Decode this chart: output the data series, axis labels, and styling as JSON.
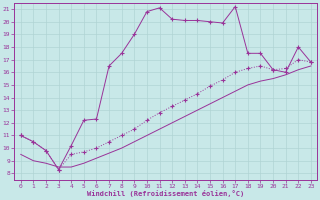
{
  "xlabel": "Windchill (Refroidissement éolien,°C)",
  "bg_color": "#c8e8e8",
  "line_color": "#993399",
  "grid_color": "#b0d4d4",
  "xlim": [
    -0.5,
    23.5
  ],
  "ylim": [
    7.5,
    21.5
  ],
  "yticks": [
    8,
    9,
    10,
    11,
    12,
    13,
    14,
    15,
    16,
    17,
    18,
    19,
    20,
    21
  ],
  "xticks": [
    0,
    1,
    2,
    3,
    4,
    5,
    6,
    7,
    8,
    9,
    10,
    11,
    12,
    13,
    14,
    15,
    16,
    17,
    18,
    19,
    20,
    21,
    22,
    23
  ],
  "line1_x": [
    0,
    1,
    2,
    3,
    4,
    5,
    6,
    7,
    8,
    9,
    10,
    11,
    12,
    13,
    14,
    15,
    16,
    17,
    18,
    19,
    20,
    21,
    22,
    23
  ],
  "line1_y": [
    11.0,
    10.5,
    9.8,
    8.3,
    10.2,
    12.2,
    12.3,
    16.5,
    17.5,
    19.0,
    20.8,
    21.1,
    20.2,
    20.1,
    20.1,
    20.0,
    19.9,
    21.2,
    17.5,
    17.5,
    16.2,
    16.0,
    18.0,
    16.8
  ],
  "line2_x": [
    0,
    1,
    2,
    3,
    4,
    5,
    6,
    7,
    8,
    9,
    10,
    11,
    12,
    13,
    14,
    15,
    16,
    17,
    18,
    19,
    20,
    21,
    22,
    23
  ],
  "line2_y": [
    11.0,
    10.5,
    9.8,
    8.3,
    9.5,
    9.7,
    10.0,
    10.5,
    11.0,
    11.5,
    12.2,
    12.8,
    13.3,
    13.8,
    14.3,
    14.9,
    15.4,
    16.0,
    16.3,
    16.5,
    16.2,
    16.3,
    17.0,
    16.8
  ],
  "line3_x": [
    0,
    1,
    2,
    3,
    4,
    5,
    6,
    7,
    8,
    9,
    10,
    11,
    12,
    13,
    14,
    15,
    16,
    17,
    18,
    19,
    20,
    21,
    22,
    23
  ],
  "line3_y": [
    9.5,
    9.0,
    8.8,
    8.5,
    8.5,
    8.8,
    9.2,
    9.6,
    10.0,
    10.5,
    11.0,
    11.5,
    12.0,
    12.5,
    13.0,
    13.5,
    14.0,
    14.5,
    15.0,
    15.3,
    15.5,
    15.8,
    16.2,
    16.5
  ]
}
